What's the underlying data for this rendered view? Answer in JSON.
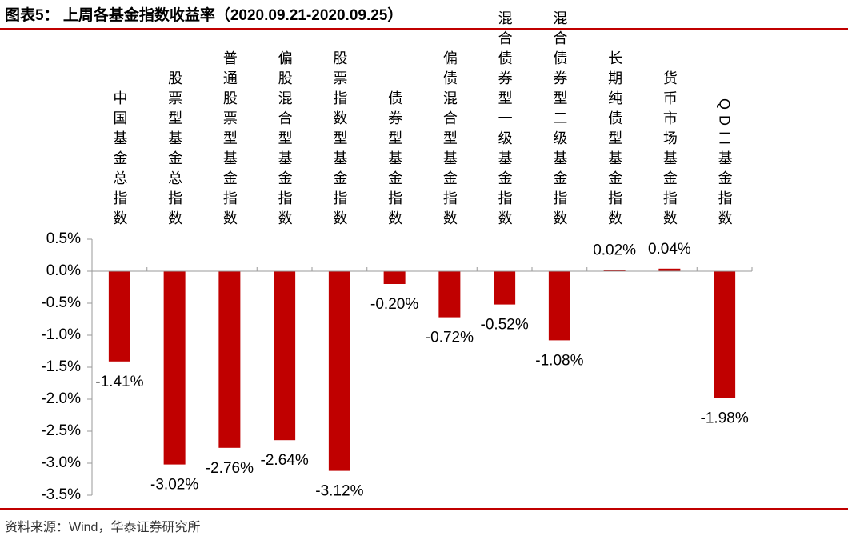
{
  "title": "图表5： 上周各基金指数收益率（2020.09.21-2020.09.25）",
  "source": "资料来源：Wind，华泰证券研究所",
  "chart_data": {
    "type": "bar",
    "categories": [
      "中国基金总指数",
      "股票型基金总指数",
      "普通股票型基金指数",
      "偏股混合型基金指数",
      "股票指数型基金指数",
      "债券型基金指数",
      "偏债混合型基金指数",
      "混合债券型一级基金指数",
      "混合债券型二级基金指数",
      "长期纯债型基金指数",
      "货币市场基金指数",
      "QDII基金指数"
    ],
    "values": [
      -1.41,
      -3.02,
      -2.76,
      -2.64,
      -3.12,
      -0.2,
      -0.72,
      -0.52,
      -1.08,
      0.02,
      0.04,
      -1.98
    ],
    "value_labels": [
      "-1.41%",
      "-3.02%",
      "-2.76%",
      "-2.64%",
      "-3.12%",
      "-0.20%",
      "-0.72%",
      "-0.52%",
      "-1.08%",
      "0.02%",
      "0.04%",
      "-1.98%"
    ],
    "color": "#c00000",
    "ylim": [
      -3.5,
      0.5
    ],
    "yticks": [
      {
        "value": 0.5,
        "label": "0.5%"
      },
      {
        "value": 0.0,
        "label": "0.0%"
      },
      {
        "value": -0.5,
        "label": "-0.5%"
      },
      {
        "value": -1.0,
        "label": "-1.0%"
      },
      {
        "value": -1.5,
        "label": "-1.5%"
      },
      {
        "value": -2.0,
        "label": "-2.0%"
      },
      {
        "value": -2.5,
        "label": "-2.5%"
      },
      {
        "value": -3.0,
        "label": "-3.0%"
      },
      {
        "value": -3.5,
        "label": "-3.5%"
      }
    ],
    "grid": false
  }
}
